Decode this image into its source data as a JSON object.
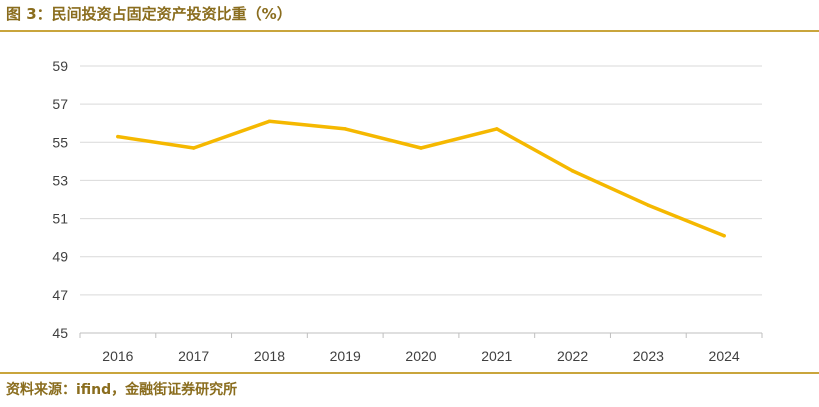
{
  "figure_title": "图 3：民间投资占固定资产投资比重（%）",
  "source": "资料来源：ifind，金融街证券研究所",
  "colors": {
    "line": "#f5b800",
    "grid": "#d9d9d9",
    "accent": "#c9a53c",
    "text": "#8a6d1e"
  },
  "chart_data": {
    "type": "line",
    "title": "",
    "xlabel": "",
    "ylabel": "",
    "x": [
      "2016",
      "2017",
      "2018",
      "2019",
      "2020",
      "2021",
      "2022",
      "2023",
      "2024"
    ],
    "series": [
      {
        "values": [
          55.3,
          54.7,
          56.1,
          55.7,
          54.7,
          55.7,
          53.5,
          51.7,
          50.1
        ]
      }
    ],
    "ylim": [
      45,
      59
    ],
    "yticks": [
      45,
      47,
      49,
      51,
      53,
      55,
      57,
      59
    ],
    "grid": true,
    "legend": "none"
  }
}
